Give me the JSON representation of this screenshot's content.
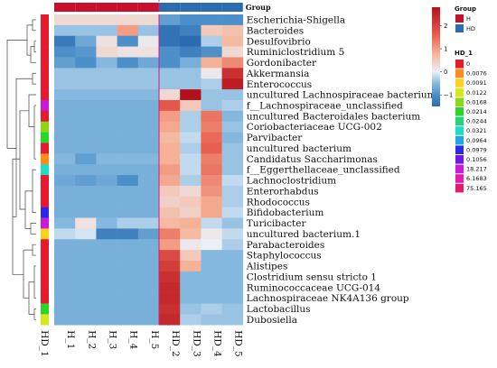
{
  "chart_data": {
    "type": "heatmap",
    "columns": [
      "H_1",
      "H_2",
      "H_3",
      "H_4",
      "H_5",
      "HD_2",
      "HD_3",
      "HD_4",
      "HD_5"
    ],
    "column_group": [
      "H",
      "H",
      "H",
      "H",
      "H",
      "HD",
      "HD",
      "HD",
      "HD"
    ],
    "column_annotation_label": "Group",
    "row_annotation_label": "HD_1",
    "rows": [
      "Escherichia-Shigella",
      "Bacteroides",
      "Desulfovibrio",
      "Ruminiclostridium 5",
      "Gordonibacter",
      "Akkermansia",
      "Enterococcus",
      "uncultured Lachnospiraceae bacterium",
      "f__Lachnospiraceae_unclassified",
      "uncultured Bacteroidales bacterium",
      "Coriobacteriaceae UCG-002",
      "Parvibacter",
      "uncultured bacterium",
      "Candidatus Saccharimonas",
      "f__Eggerthellaceae_unclassified",
      "Lachnoclostridium",
      "Enterorhabdus",
      "Rhodococcus",
      "Bifidobacterium",
      "Turicibacter",
      "uncultured bacterium.1",
      "Parabacteroides",
      "Staphylococcus",
      "Alistipes",
      "Clostridium sensu stricto 1",
      "Ruminococcaceae UCG-014",
      "Lachnospiraceae NK4A136 group",
      "Lactobacillus",
      "Dubosiella"
    ],
    "values": [
      [
        0.3,
        0.3,
        0.3,
        0.3,
        0.3,
        -0.8,
        -1.0,
        -1.0,
        -1.0
      ],
      [
        -0.4,
        -0.4,
        -0.4,
        1.0,
        -0.4,
        -1.4,
        -1.2,
        0.5,
        0.6
      ],
      [
        -1.3,
        -0.7,
        0.2,
        -1.0,
        0.1,
        -1.4,
        -1.5,
        -0.3,
        0.7
      ],
      [
        -1.0,
        -0.9,
        0.3,
        0.2,
        0.2,
        -1.0,
        -1.2,
        -1.0,
        0.3
      ],
      [
        -0.8,
        -1.0,
        -0.5,
        -1.0,
        -0.7,
        -1.0,
        -0.6,
        0.8,
        1.2
      ],
      [
        -0.4,
        -0.4,
        -0.4,
        -0.4,
        -0.4,
        -0.4,
        -0.4,
        0.1,
        2.3
      ],
      [
        -0.4,
        -0.4,
        -0.4,
        -0.4,
        -0.4,
        -0.4,
        -0.4,
        -0.3,
        2.6
      ],
      [
        -0.5,
        -0.5,
        -0.5,
        -0.5,
        -0.5,
        0.3,
        2.8,
        -0.4,
        -0.4
      ],
      [
        -0.6,
        -0.6,
        -0.6,
        -0.6,
        -0.6,
        1.7,
        0.5,
        -0.4,
        -0.3
      ],
      [
        -0.6,
        -0.6,
        -0.6,
        -0.6,
        -0.6,
        1.0,
        -0.3,
        1.4,
        -0.5
      ],
      [
        -0.6,
        -0.6,
        -0.6,
        -0.6,
        -0.6,
        0.9,
        -0.3,
        1.3,
        -0.4
      ],
      [
        -0.6,
        -0.6,
        -0.6,
        -0.6,
        -0.6,
        0.7,
        -0.2,
        1.5,
        -0.5
      ],
      [
        -0.6,
        -0.6,
        -0.6,
        -0.6,
        -0.6,
        0.8,
        -0.3,
        1.6,
        -0.4
      ],
      [
        -0.5,
        -0.8,
        -0.5,
        -0.5,
        -0.5,
        0.8,
        -0.2,
        1.3,
        -0.4
      ],
      [
        -0.6,
        -0.6,
        -0.6,
        -0.6,
        -0.6,
        1.0,
        -0.2,
        1.4,
        -0.4
      ],
      [
        -0.7,
        -0.8,
        -0.7,
        -1.0,
        -0.6,
        0.9,
        -0.3,
        1.2,
        -0.2
      ],
      [
        -0.6,
        -0.6,
        -0.6,
        -0.6,
        -0.6,
        0.5,
        0.3,
        1.1,
        -0.3
      ],
      [
        -0.6,
        -0.6,
        -0.6,
        -0.6,
        -0.6,
        0.4,
        0.5,
        0.9,
        -0.3
      ],
      [
        -0.6,
        -0.6,
        -0.6,
        -0.6,
        -0.6,
        0.6,
        0.4,
        0.9,
        -0.2
      ],
      [
        -0.5,
        0.2,
        -0.5,
        -0.3,
        -0.3,
        0.7,
        0.8,
        -0.2,
        -0.4
      ],
      [
        -0.2,
        -0.1,
        -1.2,
        -1.2,
        -0.8,
        1.3,
        0.7,
        0.1,
        -0.2
      ],
      [
        -0.6,
        -0.6,
        -0.6,
        -0.6,
        -0.6,
        1.0,
        0.1,
        0.0,
        -0.3
      ],
      [
        -0.6,
        -0.6,
        -0.6,
        -0.6,
        -0.6,
        1.9,
        0.5,
        -0.5,
        -0.5
      ],
      [
        -0.6,
        -0.6,
        -0.6,
        -0.6,
        -0.6,
        2.1,
        0.8,
        -0.5,
        -0.5
      ],
      [
        -0.6,
        -0.6,
        -0.6,
        -0.6,
        -0.6,
        2.3,
        -0.5,
        -0.5,
        -0.5
      ],
      [
        -0.6,
        -0.6,
        -0.6,
        -0.6,
        -0.6,
        2.4,
        -0.5,
        -0.5,
        -0.5
      ],
      [
        -0.6,
        -0.6,
        -0.6,
        -0.6,
        -0.6,
        2.4,
        -0.5,
        -0.5,
        -0.5
      ],
      [
        -0.6,
        -0.6,
        -0.6,
        -0.6,
        -0.6,
        2.3,
        -0.4,
        -0.3,
        -0.4
      ],
      [
        -0.6,
        -0.6,
        -0.6,
        -0.6,
        -0.6,
        2.4,
        -0.3,
        -0.4,
        -0.4
      ]
    ],
    "row_annotation_colors": [
      "#e8192c",
      "#e8192c",
      "#e8192c",
      "#e8192c",
      "#e8192c",
      "#e8192c",
      "#e8192c",
      "#e8192c",
      "#c81adb",
      "#e8192c",
      "#8bd916",
      "#2bd62b",
      "#e8192c",
      "#ff8c19",
      "#1fdcc9",
      "#e8192c",
      "#e8192c",
      "#e8192c",
      "#2a2aee",
      "#c81adb",
      "#ffd21a",
      "#e8192c",
      "#e8192c",
      "#e8192c",
      "#e8192c",
      "#e8192c",
      "#e8192c",
      "#2bd62b",
      "#d6e81a"
    ],
    "color_scale": {
      "min": -1.5,
      "max": 2.8,
      "ticks": [
        2,
        1,
        0,
        -1
      ]
    },
    "legend_group": {
      "title": "Group",
      "entries": [
        {
          "label": "H",
          "color": "#c8102e"
        },
        {
          "label": "HD",
          "color": "#2b6cb0"
        }
      ]
    },
    "legend_hd1": {
      "title": "HD_1",
      "entries": [
        {
          "label": "0",
          "color": "#e8192c"
        },
        {
          "label": "0.0076",
          "color": "#ff8c19"
        },
        {
          "label": "0.0091",
          "color": "#ffd21a"
        },
        {
          "label": "0.0122",
          "color": "#d6e81a"
        },
        {
          "label": "0.0168",
          "color": "#8bd916"
        },
        {
          "label": "0.0214",
          "color": "#2bd62b"
        },
        {
          "label": "0.0244",
          "color": "#1fd77a"
        },
        {
          "label": "0.0321",
          "color": "#1fdcc9"
        },
        {
          "label": "0.0964",
          "color": "#1aa8e8"
        },
        {
          "label": "0.0979",
          "color": "#2a2aee"
        },
        {
          "label": "0.1056",
          "color": "#6a1aee"
        },
        {
          "label": "18.217",
          "color": "#c81adb"
        },
        {
          "label": "6.1683",
          "color": "#e81ab0"
        },
        {
          "label": "75.165",
          "color": "#e81a6a"
        }
      ]
    }
  }
}
